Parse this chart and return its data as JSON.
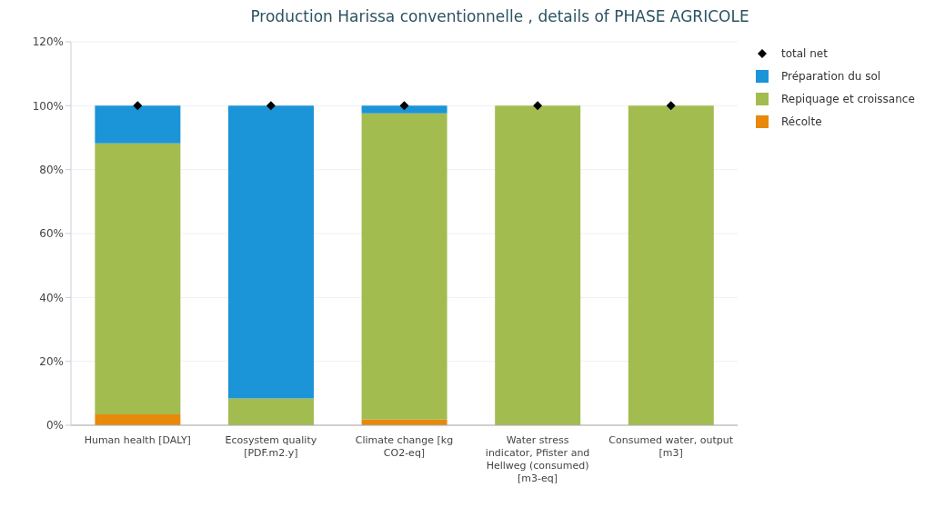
{
  "chart_data": {
    "type": "bar",
    "title": "Production Harissa conventionnelle , details of PHASE AGRICOLE",
    "categories": [
      "Human health [DALY]",
      "Ecosystem quality [PDF.m2.y]",
      "Climate change [kg CO2-eq]",
      "Water stress indicator, Pfister and Hellweg (consumed) [m3-eq]",
      "Consumed water, output [m3]"
    ],
    "stacked": true,
    "series": [
      {
        "name": "Récolte",
        "color": "#e8890c",
        "values": [
          3.4,
          0,
          1.8,
          0,
          0
        ]
      },
      {
        "name": "Repiquage et croissance",
        "color": "#a3bc50",
        "values": [
          84.8,
          8.4,
          95.8,
          100,
          100
        ]
      },
      {
        "name": "Préparation du sol",
        "color": "#1c94d8",
        "values": [
          11.8,
          91.6,
          2.4,
          0,
          0
        ]
      },
      {
        "name": "total net",
        "type": "scatter",
        "color": "#000000",
        "marker": "diamond",
        "values": [
          100,
          100,
          100,
          100,
          100
        ]
      }
    ],
    "ylim": [
      0,
      120
    ],
    "yticks": [
      {
        "value": 0,
        "label": "0%"
      },
      {
        "value": 20,
        "label": "20%"
      },
      {
        "value": 40,
        "label": "40%"
      },
      {
        "value": 60,
        "label": "60%"
      },
      {
        "value": 80,
        "label": "80%"
      },
      {
        "value": 100,
        "label": "100%"
      },
      {
        "value": 120,
        "label": "120%"
      }
    ],
    "grid": "y",
    "legend": "top right"
  }
}
